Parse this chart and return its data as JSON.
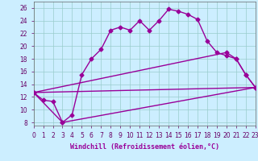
{
  "xlabel": "Windchill (Refroidissement éolien,°C)",
  "xlim": [
    0,
    23
  ],
  "ylim": [
    7.5,
    27
  ],
  "yticks": [
    8,
    10,
    12,
    14,
    16,
    18,
    20,
    22,
    24,
    26
  ],
  "xticks": [
    0,
    1,
    2,
    3,
    4,
    5,
    6,
    7,
    8,
    9,
    10,
    11,
    12,
    13,
    14,
    15,
    16,
    17,
    18,
    19,
    20,
    21,
    22,
    23
  ],
  "background_color": "#cceeff",
  "grid_color": "#99cccc",
  "line_color": "#990099",
  "line1_x": [
    0,
    1,
    2,
    3,
    4,
    5,
    6,
    7,
    8,
    9,
    10,
    11,
    12,
    13,
    14,
    15,
    16,
    17,
    18,
    19,
    20,
    21,
    22,
    23
  ],
  "line1_y": [
    12.7,
    11.5,
    11.3,
    8.0,
    9.2,
    15.5,
    18.0,
    19.5,
    22.5,
    23.0,
    22.5,
    24.0,
    22.5,
    24.0,
    25.8,
    25.5,
    25.0,
    24.2,
    20.8,
    19.0,
    18.5,
    18.0,
    15.5,
    13.5
  ],
  "line2_x": [
    0,
    3,
    23
  ],
  "line2_y": [
    12.7,
    8.0,
    13.5
  ],
  "line3_x": [
    0,
    20,
    21,
    22,
    23
  ],
  "line3_y": [
    12.7,
    19.0,
    18.0,
    15.5,
    13.5
  ],
  "line4_x": [
    0,
    23
  ],
  "line4_y": [
    12.7,
    13.5
  ],
  "marker": "D",
  "markersize": 2.5,
  "linewidth": 1.0,
  "xlabel_fontsize": 6.0,
  "tick_fontsize": 5.5
}
